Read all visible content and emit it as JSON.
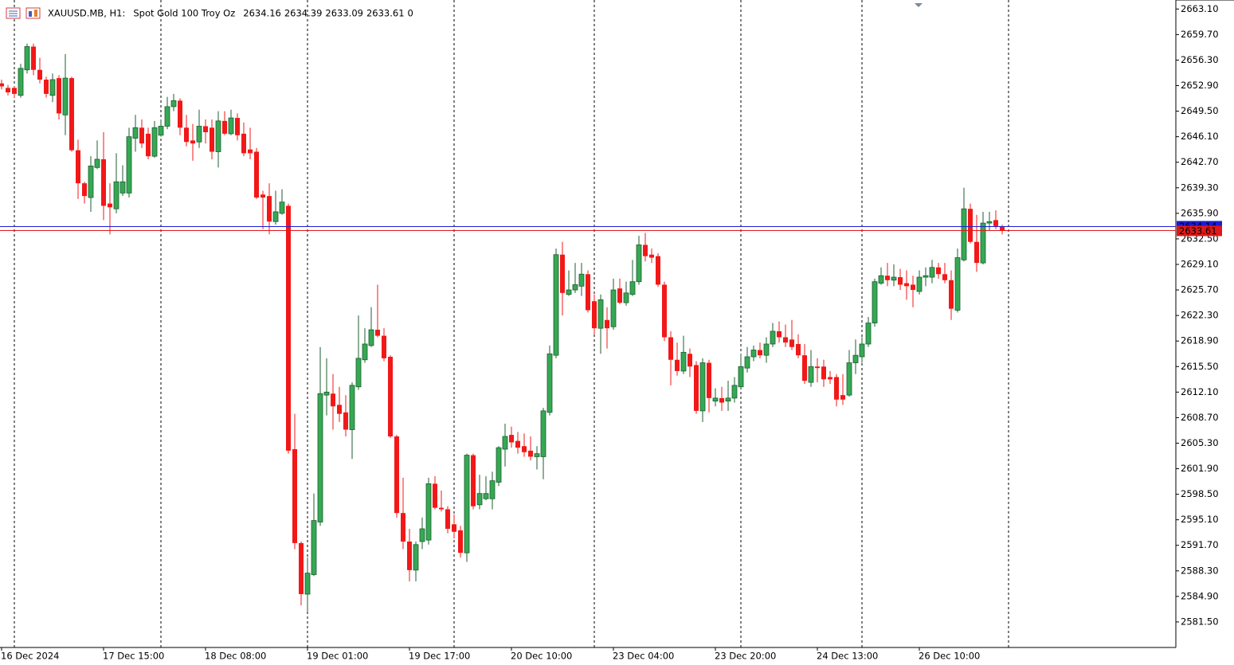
{
  "chart_data": {
    "type": "candlestick",
    "symbol": "XAUUSD.MB, H1:",
    "description": "Spot Gold 100 Troy Oz",
    "header_value": 0,
    "up_color": "#35a853",
    "down_color": "#f21818",
    "ask": 2634.14,
    "ask_color": "#1c1cd6",
    "bid_color": "#e01818",
    "ylim": [
      2578.1,
      2664.3
    ],
    "yticks": [
      {
        "value": 2663.1,
        "label": "2663.10"
      },
      {
        "value": 2659.7,
        "label": "2659.70"
      },
      {
        "value": 2656.3,
        "label": "2656.30"
      },
      {
        "value": 2652.9,
        "label": "2652.90"
      },
      {
        "value": 2649.5,
        "label": "2649.50"
      },
      {
        "value": 2646.1,
        "label": "2646.10"
      },
      {
        "value": 2642.7,
        "label": "2642.70"
      },
      {
        "value": 2639.3,
        "label": "2639.30"
      },
      {
        "value": 2635.9,
        "label": "2635.90"
      },
      {
        "value": 2632.5,
        "label": "2632.50"
      },
      {
        "value": 2629.1,
        "label": "2629.10"
      },
      {
        "value": 2625.7,
        "label": "2625.70"
      },
      {
        "value": 2622.3,
        "label": "2622.30"
      },
      {
        "value": 2618.9,
        "label": "2618.90"
      },
      {
        "value": 2615.5,
        "label": "2615.50"
      },
      {
        "value": 2612.1,
        "label": "2612.10"
      },
      {
        "value": 2608.7,
        "label": "2608.70"
      },
      {
        "value": 2605.3,
        "label": "2605.30"
      },
      {
        "value": 2601.9,
        "label": "2601.90"
      },
      {
        "value": 2598.5,
        "label": "2598.50"
      },
      {
        "value": 2595.1,
        "label": "2595.10"
      },
      {
        "value": 2591.7,
        "label": "2591.70"
      },
      {
        "value": 2588.3,
        "label": "2588.30"
      },
      {
        "value": 2584.9,
        "label": "2584.90"
      },
      {
        "value": 2581.5,
        "label": "2581.50"
      }
    ],
    "categories": [
      "16 Dec 2024",
      null,
      null,
      null,
      null,
      null,
      null,
      null,
      null,
      null,
      null,
      null,
      null,
      null,
      null,
      null,
      "17 Dec 15:00",
      null,
      null,
      null,
      null,
      null,
      null,
      null,
      null,
      null,
      null,
      null,
      null,
      null,
      null,
      null,
      "18 Dec 08:00",
      null,
      null,
      null,
      null,
      null,
      null,
      null,
      null,
      null,
      null,
      null,
      null,
      null,
      null,
      null,
      "19 Dec 01:00",
      null,
      null,
      null,
      null,
      null,
      null,
      null,
      null,
      null,
      null,
      null,
      null,
      null,
      null,
      null,
      "19 Dec 17:00",
      null,
      null,
      null,
      null,
      null,
      null,
      null,
      null,
      null,
      null,
      null,
      null,
      null,
      null,
      null,
      "20 Dec 10:00",
      null,
      null,
      null,
      null,
      null,
      null,
      null,
      null,
      null,
      null,
      null,
      null,
      null,
      null,
      null,
      "23 Dec 04:00",
      null,
      null,
      null,
      null,
      null,
      null,
      null,
      null,
      null,
      null,
      null,
      null,
      null,
      null,
      null,
      "23 Dec 20:00",
      null,
      null,
      null,
      null,
      null,
      null,
      null,
      null,
      null,
      null,
      null,
      null,
      null,
      null,
      null,
      "24 Dec 13:00",
      null,
      null,
      null,
      null,
      null,
      null,
      null,
      null,
      null,
      null,
      null,
      null,
      null,
      null,
      null,
      "26 Dec 10:00",
      null,
      null,
      null,
      null,
      null,
      null,
      null,
      null,
      null,
      null,
      null,
      null,
      null
    ],
    "ohlc": [
      [
        2653.2,
        2653.7,
        2652.4,
        2652.8
      ],
      [
        2652.6,
        2653.0,
        2651.6,
        2652.0
      ],
      [
        2652.6,
        2652.8,
        2651.3,
        2651.8
      ],
      [
        2651.6,
        2655.8,
        2651.3,
        2655.2
      ],
      [
        2655.0,
        2658.5,
        2654.5,
        2658.1
      ],
      [
        2658.1,
        2658.5,
        2654.3,
        2655.0
      ],
      [
        2655.0,
        2656.6,
        2653.2,
        2653.7
      ],
      [
        2653.7,
        2654.1,
        2651.3,
        2651.8
      ],
      [
        2651.6,
        2654.5,
        2650.7,
        2653.7
      ],
      [
        2653.9,
        2654.3,
        2648.4,
        2649.2
      ],
      [
        2649.0,
        2657.1,
        2646.3,
        2653.9
      ],
      [
        2653.9,
        2654.1,
        2644.1,
        2644.3
      ],
      [
        2644.3,
        2645.7,
        2637.8,
        2639.9
      ],
      [
        2639.9,
        2640.1,
        2637.2,
        2638.2
      ],
      [
        2638.0,
        2643.5,
        2636.1,
        2642.2
      ],
      [
        2642.0,
        2645.6,
        2641.8,
        2643.1
      ],
      [
        2643.1,
        2646.7,
        2635.0,
        2636.9
      ],
      [
        2637.2,
        2639.9,
        2633.1,
        2636.7
      ],
      [
        2636.5,
        2643.9,
        2635.9,
        2640.1
      ],
      [
        2638.6,
        2642.3,
        2638.2,
        2640.1
      ],
      [
        2638.6,
        2647.3,
        2638.0,
        2646.1
      ],
      [
        2645.9,
        2649.0,
        2644.1,
        2647.3
      ],
      [
        2647.3,
        2648.4,
        2644.6,
        2645.2
      ],
      [
        2646.5,
        2647.3,
        2643.1,
        2643.5
      ],
      [
        2643.5,
        2648.2,
        2643.3,
        2647.3
      ],
      [
        2646.3,
        2648.4,
        2646.1,
        2647.5
      ],
      [
        2647.5,
        2651.4,
        2647.1,
        2650.1
      ],
      [
        2650.1,
        2651.8,
        2649.5,
        2650.9
      ],
      [
        2650.9,
        2651.2,
        2646.3,
        2647.3
      ],
      [
        2647.3,
        2649.0,
        2644.8,
        2645.4
      ],
      [
        2645.6,
        2647.8,
        2642.9,
        2645.2
      ],
      [
        2645.4,
        2649.7,
        2644.6,
        2647.5
      ],
      [
        2647.5,
        2648.4,
        2645.2,
        2646.7
      ],
      [
        2647.3,
        2648.4,
        2643.1,
        2644.1
      ],
      [
        2644.1,
        2649.5,
        2642.0,
        2648.2
      ],
      [
        2648.2,
        2649.5,
        2646.3,
        2646.5
      ],
      [
        2646.5,
        2649.7,
        2646.3,
        2648.6
      ],
      [
        2648.6,
        2649.2,
        2645.6,
        2646.3
      ],
      [
        2646.5,
        2648.0,
        2643.5,
        2643.9
      ],
      [
        2644.4,
        2647.3,
        2643.1,
        2643.9
      ],
      [
        2644.1,
        2644.6,
        2637.8,
        2638.0
      ],
      [
        2638.4,
        2638.9,
        2633.8,
        2638.0
      ],
      [
        2638.2,
        2639.9,
        2633.1,
        2634.8
      ],
      [
        2634.8,
        2638.9,
        2634.4,
        2636.1
      ],
      [
        2635.9,
        2639.1,
        2635.7,
        2637.4
      ],
      [
        2636.9,
        2637.2,
        2603.9,
        2604.3
      ],
      [
        2604.5,
        2609.2,
        2591.2,
        2592.0
      ],
      [
        2592.0,
        2592.2,
        2583.7,
        2585.2
      ],
      [
        2585.2,
        2590.1,
        2582.9,
        2588.0
      ],
      [
        2587.8,
        2598.6,
        2587.6,
        2595.0
      ],
      [
        2594.8,
        2618.1,
        2594.3,
        2611.9
      ],
      [
        2611.7,
        2616.6,
        2609.0,
        2612.1
      ],
      [
        2611.9,
        2614.5,
        2607.1,
        2610.2
      ],
      [
        2610.4,
        2612.8,
        2608.1,
        2609.2
      ],
      [
        2609.4,
        2611.7,
        2606.2,
        2607.1
      ],
      [
        2607.1,
        2613.4,
        2603.2,
        2613.0
      ],
      [
        2612.8,
        2622.3,
        2612.4,
        2616.6
      ],
      [
        2616.4,
        2620.6,
        2616.0,
        2618.5
      ],
      [
        2618.3,
        2623.4,
        2618.1,
        2620.4
      ],
      [
        2620.4,
        2626.4,
        2619.4,
        2619.6
      ],
      [
        2619.6,
        2620.6,
        2616.2,
        2616.6
      ],
      [
        2616.8,
        2617.0,
        2606.0,
        2606.2
      ],
      [
        2606.2,
        2606.4,
        2595.4,
        2596.0
      ],
      [
        2596.0,
        2600.7,
        2591.2,
        2592.2
      ],
      [
        2592.2,
        2593.9,
        2586.9,
        2588.4
      ],
      [
        2588.4,
        2592.2,
        2586.9,
        2591.8
      ],
      [
        2592.2,
        2595.4,
        2591.2,
        2593.9
      ],
      [
        2592.4,
        2600.7,
        2591.8,
        2599.9
      ],
      [
        2599.9,
        2600.9,
        2596.5,
        2596.7
      ],
      [
        2596.7,
        2599.0,
        2596.2,
        2596.5
      ],
      [
        2596.5,
        2596.9,
        2593.3,
        2593.9
      ],
      [
        2594.5,
        2595.8,
        2592.6,
        2593.5
      ],
      [
        2593.7,
        2594.3,
        2590.1,
        2590.7
      ],
      [
        2590.7,
        2603.9,
        2589.5,
        2603.7
      ],
      [
        2603.7,
        2603.9,
        2596.5,
        2596.9
      ],
      [
        2597.1,
        2601.1,
        2596.5,
        2598.6
      ],
      [
        2597.9,
        2600.9,
        2597.7,
        2598.6
      ],
      [
        2597.9,
        2601.5,
        2596.5,
        2600.3
      ],
      [
        2600.1,
        2604.9,
        2599.6,
        2604.7
      ],
      [
        2604.5,
        2607.9,
        2602.2,
        2606.2
      ],
      [
        2606.4,
        2607.5,
        2604.7,
        2605.4
      ],
      [
        2605.6,
        2606.8,
        2603.9,
        2604.7
      ],
      [
        2604.9,
        2606.6,
        2603.5,
        2604.1
      ],
      [
        2604.3,
        2606.2,
        2603.0,
        2603.5
      ],
      [
        2603.5,
        2604.9,
        2601.8,
        2603.9
      ],
      [
        2603.5,
        2610.0,
        2600.5,
        2609.6
      ],
      [
        2609.4,
        2618.3,
        2609.0,
        2617.2
      ],
      [
        2617.0,
        2631.2,
        2616.6,
        2630.4
      ],
      [
        2630.4,
        2632.1,
        2622.3,
        2625.3
      ],
      [
        2625.1,
        2628.3,
        2624.9,
        2625.7
      ],
      [
        2625.7,
        2629.3,
        2625.3,
        2626.4
      ],
      [
        2626.2,
        2629.3,
        2624.9,
        2627.8
      ],
      [
        2627.8,
        2628.3,
        2622.7,
        2623.0
      ],
      [
        2624.2,
        2625.1,
        2619.8,
        2620.6
      ],
      [
        2620.6,
        2625.1,
        2617.2,
        2624.4
      ],
      [
        2621.7,
        2623.4,
        2617.9,
        2620.6
      ],
      [
        2620.8,
        2627.2,
        2620.4,
        2625.7
      ],
      [
        2625.9,
        2627.2,
        2623.8,
        2624.0
      ],
      [
        2624.0,
        2626.8,
        2623.6,
        2625.3
      ],
      [
        2625.1,
        2629.7,
        2624.9,
        2626.8
      ],
      [
        2626.8,
        2632.9,
        2626.4,
        2631.7
      ],
      [
        2631.7,
        2633.3,
        2629.5,
        2630.2
      ],
      [
        2630.4,
        2631.2,
        2629.3,
        2630.0
      ],
      [
        2630.2,
        2630.6,
        2626.1,
        2626.4
      ],
      [
        2626.4,
        2626.8,
        2618.9,
        2619.4
      ],
      [
        2619.4,
        2620.2,
        2613.0,
        2616.4
      ],
      [
        2616.4,
        2618.7,
        2614.3,
        2614.9
      ],
      [
        2614.9,
        2619.6,
        2614.5,
        2617.4
      ],
      [
        2617.2,
        2617.9,
        2614.1,
        2615.5
      ],
      [
        2615.7,
        2616.2,
        2609.2,
        2609.6
      ],
      [
        2609.6,
        2616.6,
        2608.1,
        2616.0
      ],
      [
        2616.0,
        2616.4,
        2609.4,
        2611.3
      ],
      [
        2610.9,
        2612.6,
        2610.2,
        2611.3
      ],
      [
        2611.3,
        2612.8,
        2609.6,
        2610.7
      ],
      [
        2610.9,
        2613.6,
        2609.6,
        2611.3
      ],
      [
        2611.3,
        2614.1,
        2610.7,
        2613.0
      ],
      [
        2612.8,
        2617.2,
        2612.6,
        2615.5
      ],
      [
        2615.3,
        2618.1,
        2614.7,
        2616.8
      ],
      [
        2616.8,
        2618.3,
        2616.2,
        2617.7
      ],
      [
        2617.7,
        2618.7,
        2616.6,
        2617.0
      ],
      [
        2617.0,
        2619.4,
        2616.0,
        2618.5
      ],
      [
        2618.5,
        2621.3,
        2618.1,
        2620.2
      ],
      [
        2620.2,
        2621.5,
        2618.7,
        2619.4
      ],
      [
        2619.4,
        2621.1,
        2618.1,
        2618.7
      ],
      [
        2619.1,
        2621.7,
        2617.7,
        2618.1
      ],
      [
        2618.5,
        2619.8,
        2616.6,
        2617.0
      ],
      [
        2617.0,
        2618.5,
        2613.2,
        2613.6
      ],
      [
        2613.4,
        2617.7,
        2612.8,
        2615.5
      ],
      [
        2615.5,
        2616.6,
        2613.4,
        2615.3
      ],
      [
        2615.5,
        2616.4,
        2612.8,
        2613.8
      ],
      [
        2614.1,
        2614.9,
        2613.2,
        2613.8
      ],
      [
        2614.1,
        2614.5,
        2610.2,
        2611.1
      ],
      [
        2611.7,
        2614.5,
        2610.4,
        2611.1
      ],
      [
        2611.7,
        2617.7,
        2611.5,
        2616.0
      ],
      [
        2616.0,
        2619.1,
        2614.5,
        2617.0
      ],
      [
        2616.8,
        2619.4,
        2616.0,
        2618.5
      ],
      [
        2618.5,
        2622.1,
        2618.1,
        2621.3
      ],
      [
        2621.3,
        2627.2,
        2620.8,
        2626.8
      ],
      [
        2626.6,
        2628.7,
        2626.4,
        2627.6
      ],
      [
        2627.6,
        2629.3,
        2626.2,
        2627.0
      ],
      [
        2627.0,
        2629.1,
        2626.2,
        2627.4
      ],
      [
        2627.4,
        2628.5,
        2625.7,
        2626.4
      ],
      [
        2626.6,
        2628.3,
        2624.4,
        2626.2
      ],
      [
        2626.4,
        2627.6,
        2623.4,
        2625.7
      ],
      [
        2625.5,
        2628.3,
        2625.1,
        2627.4
      ],
      [
        2627.4,
        2628.7,
        2626.2,
        2627.6
      ],
      [
        2627.4,
        2629.7,
        2626.6,
        2628.7
      ],
      [
        2628.7,
        2629.3,
        2627.2,
        2627.8
      ],
      [
        2627.8,
        2629.3,
        2626.6,
        2627.0
      ],
      [
        2627.0,
        2628.3,
        2621.7,
        2623.2
      ],
      [
        2623.0,
        2631.2,
        2622.7,
        2630.0
      ],
      [
        2629.7,
        2639.3,
        2629.5,
        2636.5
      ],
      [
        2636.5,
        2637.2,
        2631.9,
        2632.1
      ],
      [
        2632.1,
        2635.7,
        2628.1,
        2629.3
      ],
      [
        2629.3,
        2636.1,
        2629.1,
        2634.6
      ],
      [
        2634.6,
        2636.1,
        2633.6,
        2634.8
      ],
      [
        2635.0,
        2636.3,
        2633.8,
        2634.2
      ],
      [
        2634.16,
        2634.39,
        2633.09,
        2633.61
      ]
    ]
  }
}
